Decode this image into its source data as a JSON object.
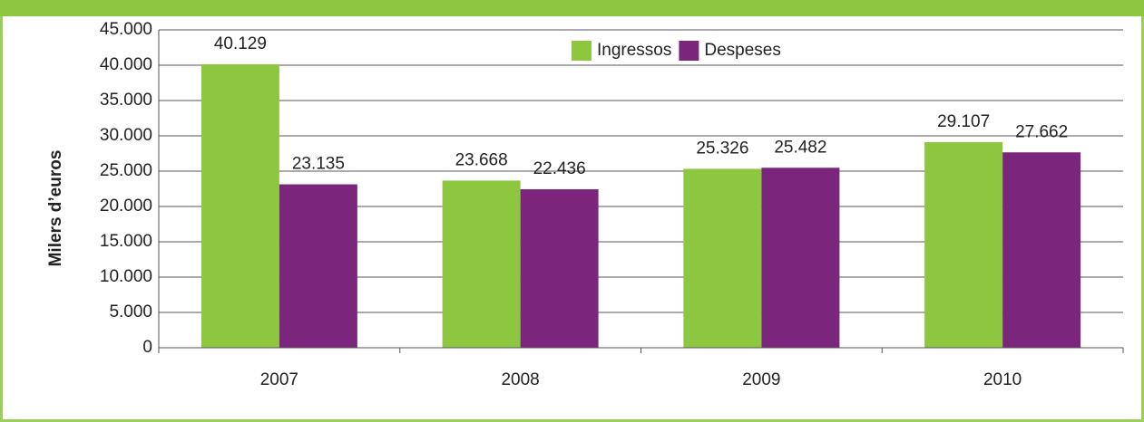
{
  "chart_data": {
    "type": "bar",
    "y_label": "Milers d’euros",
    "categories": [
      "2007",
      "2008",
      "2009",
      "2010"
    ],
    "series": [
      {
        "name": "Ingressos",
        "color": "#8dc63f",
        "values": [
          40129,
          23668,
          25326,
          29107
        ],
        "value_labels": [
          "40.129",
          "23.668",
          "25.326",
          "29.107"
        ]
      },
      {
        "name": "Despeses",
        "color": "#7b267c",
        "values": [
          23135,
          22436,
          25482,
          27662
        ],
        "value_labels": [
          "23.135",
          "22.436",
          "25.482",
          "27.662"
        ]
      }
    ],
    "ylim": [
      0,
      45000
    ],
    "yticks": [
      0,
      {
        "value": 5000,
        "label": "5.000"
      },
      {
        "value": 10000,
        "label": "10.000"
      },
      {
        "value": 15000,
        "label": "15.000"
      },
      {
        "value": 20000,
        "label": "20.000"
      },
      {
        "value": 25000,
        "label": "25.000"
      },
      {
        "value": 30000,
        "label": "30.000"
      },
      {
        "value": 35000,
        "label": "35.000"
      },
      {
        "value": 40000,
        "label": "40.000"
      },
      {
        "value": 45000,
        "label": "45.000"
      }
    ],
    "grid": true,
    "legend": "top"
  }
}
